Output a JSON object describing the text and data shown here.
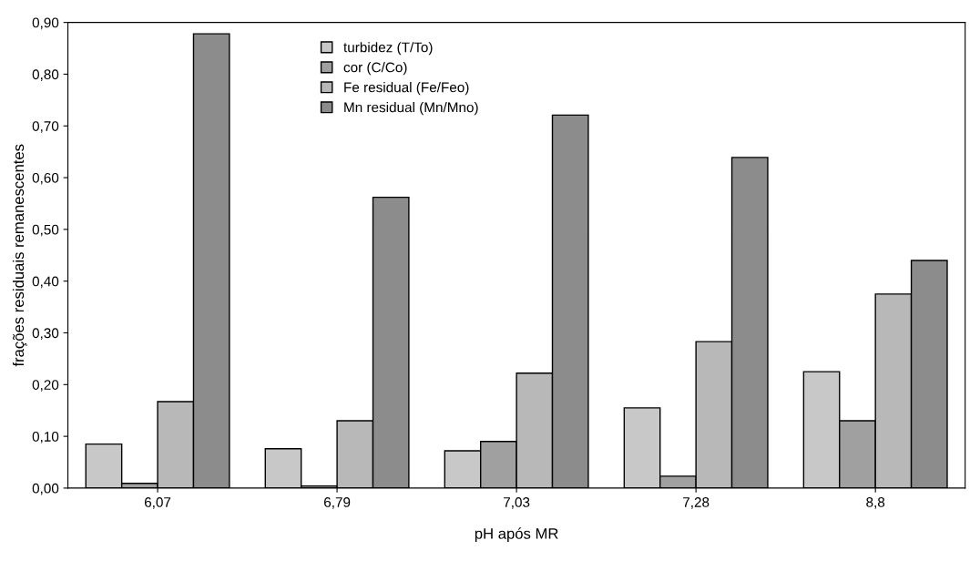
{
  "chart_data": {
    "type": "bar",
    "xlabel": "pH após MR",
    "ylabel": "frações residuais remanescentes",
    "categories": [
      "6,07",
      "6,79",
      "7,03",
      "7,28",
      "8,8"
    ],
    "series": [
      {
        "name": "turbidez (T/To)",
        "color": "#c8c8c8",
        "values": [
          0.085,
          0.076,
          0.072,
          0.155,
          0.225
        ]
      },
      {
        "name": "cor (C/Co)",
        "color": "#a0a0a0",
        "values": [
          0.009,
          0.004,
          0.09,
          0.023,
          0.13
        ]
      },
      {
        "name": "Fe residual (Fe/Feo)",
        "color": "#b8b8b8",
        "values": [
          0.167,
          0.13,
          0.222,
          0.283,
          0.375
        ]
      },
      {
        "name": "Mn residual (Mn/Mno)",
        "color": "#8c8c8c",
        "values": [
          0.878,
          0.562,
          0.721,
          0.639,
          0.44
        ]
      }
    ],
    "ylim": [
      0,
      0.9
    ],
    "yticks": [
      {
        "value": 0,
        "label": "0,00"
      },
      {
        "value": 0.1,
        "label": "0,10"
      },
      {
        "value": 0.2,
        "label": "0,20"
      },
      {
        "value": 0.3,
        "label": "0,30"
      },
      {
        "value": 0.4,
        "label": "0,40"
      },
      {
        "value": 0.5,
        "label": "0,50"
      },
      {
        "value": 0.6,
        "label": "0,60"
      },
      {
        "value": 0.7,
        "label": "0,70"
      },
      {
        "value": 0.8,
        "label": "0,80"
      },
      {
        "value": 0.9,
        "label": "0,90"
      }
    ],
    "legend": "top",
    "grid": false
  }
}
